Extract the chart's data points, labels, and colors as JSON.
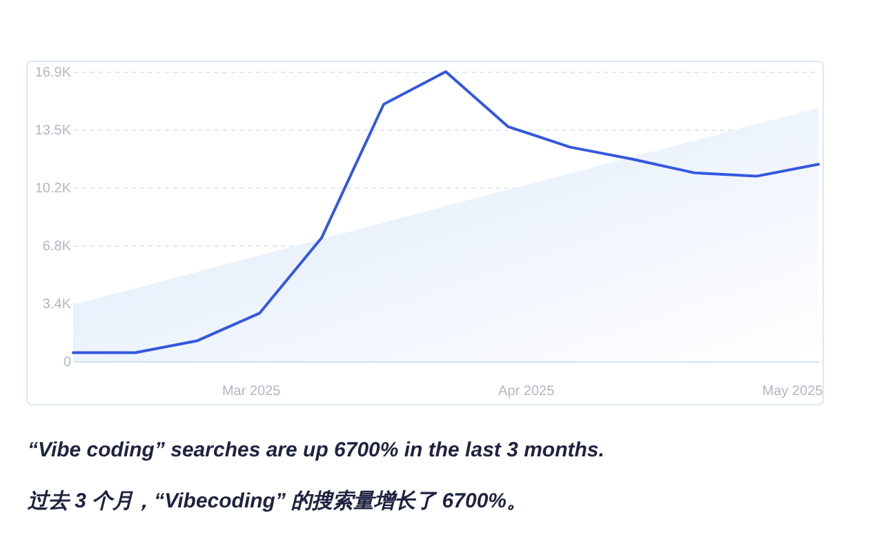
{
  "chart_data": {
    "type": "line",
    "x": [
      "2025-02-09",
      "2025-02-16",
      "2025-02-23",
      "2025-03-02",
      "2025-03-09",
      "2025-03-16",
      "2025-03-23",
      "2025-03-30",
      "2025-04-06",
      "2025-04-13",
      "2025-04-20",
      "2025-04-27",
      "2025-05-04"
    ],
    "series": [
      {
        "type": "area",
        "color": "#dce8fa",
        "x": [
          "2025-02-09",
          "2025-05-04"
        ],
        "values": [
          3300,
          14800
        ]
      },
      {
        "color": "#3358e0",
        "values": [
          500,
          500,
          1200,
          2800,
          7200,
          15000,
          16900,
          13700,
          12500,
          11800,
          11000,
          10800,
          11500
        ]
      }
    ],
    "xlim": [
      "2025-02-09",
      "2025-05-04"
    ],
    "xticks": [
      {
        "value": "2025-03-01",
        "label": "Mar 2025"
      },
      {
        "value": "2025-04-01",
        "label": "Apr 2025"
      },
      {
        "value": "2025-05-01",
        "label": "May 2025"
      }
    ],
    "ylim": [
      0,
      16900
    ],
    "yticks": [
      {
        "value": 0,
        "label": "0"
      },
      {
        "value": 3380,
        "label": "3.4K"
      },
      {
        "value": 6760,
        "label": "6.8K"
      },
      {
        "value": 10160,
        "label": "10.2K"
      },
      {
        "value": 13520,
        "label": "13.5K"
      },
      {
        "value": 16900,
        "label": "16.9K"
      }
    ],
    "grid": "y",
    "annotations": [
      "“Vibe coding” searches are up 6700% in the last 3 months.",
      "过去 3 个月，“Vibecoding” 的搜索量增长了 6700%。"
    ]
  }
}
